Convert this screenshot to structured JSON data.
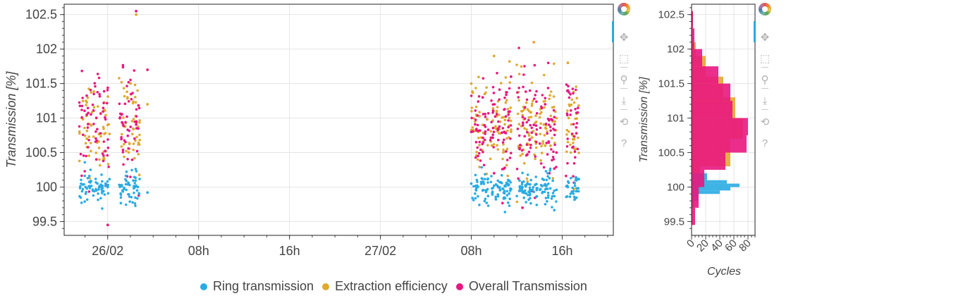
{
  "toolbar": {
    "tools": [
      {
        "name": "bokeh-logo-icon",
        "glyph": ""
      },
      {
        "name": "pan-icon",
        "glyph": "✥"
      },
      {
        "name": "box-zoom-icon",
        "glyph": "⬚"
      },
      {
        "name": "wheel-zoom-icon",
        "glyph": "⚲"
      },
      {
        "name": "save-icon",
        "glyph": "⤓"
      },
      {
        "name": "reset-icon",
        "glyph": "⟲"
      },
      {
        "name": "help-icon",
        "glyph": "?"
      }
    ]
  },
  "colors": {
    "ring": "#29abe2",
    "extraction": "#e0a830",
    "overall": "#e9177f",
    "grid": "#e5e5e5"
  },
  "chart_data": [
    {
      "type": "scatter",
      "ylabel": "Transmission [%]",
      "xlabel": "",
      "ylim": [
        99.3,
        102.65
      ],
      "xlim": [
        "2021-02-25 20:10",
        "2021-02-27 20:30"
      ],
      "yticks": [
        99.5,
        100,
        100.5,
        101,
        101.5,
        102,
        102.5
      ],
      "xticks": [
        {
          "t": "2021-02-26 00:00",
          "label": "26/02"
        },
        {
          "t": "2021-02-26 08:00",
          "label": "08h"
        },
        {
          "t": "2021-02-26 16:00",
          "label": "16h"
        },
        {
          "t": "2021-02-27 00:00",
          "label": "27/02"
        },
        {
          "t": "2021-02-27 08:00",
          "label": "08h"
        },
        {
          "t": "2021-02-27 16:00",
          "label": "16h"
        }
      ],
      "grid": true,
      "legend_position": "bottom",
      "series": [
        {
          "name": "Ring transmission",
          "key": "ring",
          "mean": 99.98,
          "sd": 0.12,
          "x": [
            "2021-02-25 22:10",
            "2021-02-25 23:00",
            "2021-02-26 00:00",
            "2021-02-26 02:30",
            "2021-02-26 03:30",
            "2021-02-27 08:00",
            "2021-02-27 09:00",
            "2021-02-27 10:00",
            "2021-02-27 11:30",
            "2021-02-27 12:30",
            "2021-02-27 13:30",
            "2021-02-27 14:30",
            "2021-02-27 15:30",
            "2021-02-27 16:30"
          ],
          "y": [
            99.98,
            99.95,
            100.0,
            100.02,
            99.92,
            100.05,
            99.95,
            100.02,
            99.97,
            100.0,
            99.93,
            100.04,
            99.96,
            100.0
          ]
        },
        {
          "name": "Extraction efficiency",
          "key": "extraction",
          "mean": 100.9,
          "sd": 0.32,
          "x": [
            "2021-02-25 22:10",
            "2021-02-25 23:00",
            "2021-02-26 00:00",
            "2021-02-26 02:30",
            "2021-02-26 03:30",
            "2021-02-27 08:00",
            "2021-02-27 09:00",
            "2021-02-27 10:00",
            "2021-02-27 11:30",
            "2021-02-27 12:30",
            "2021-02-27 13:30",
            "2021-02-27 14:30",
            "2021-02-27 15:30",
            "2021-02-27 16:30"
          ],
          "y": [
            100.7,
            101.0,
            100.9,
            102.5,
            101.2,
            101.5,
            100.9,
            101.9,
            100.8,
            101.1,
            102.1,
            100.6,
            101.0,
            101.8
          ]
        },
        {
          "name": "Overall Transmission",
          "key": "overall",
          "mean": 100.85,
          "sd": 0.38,
          "x": [
            "2021-02-25 22:10",
            "2021-02-25 23:00",
            "2021-02-26 00:00",
            "2021-02-26 02:30",
            "2021-02-26 03:30",
            "2021-02-27 08:00",
            "2021-02-27 09:00",
            "2021-02-27 10:00",
            "2021-02-27 11:30",
            "2021-02-27 12:30",
            "2021-02-27 13:30",
            "2021-02-27 14:30",
            "2021-02-27 15:30",
            "2021-02-27 16:30"
          ],
          "y": [
            101.05,
            100.4,
            99.45,
            102.55,
            101.7,
            100.8,
            101.3,
            100.2,
            101.6,
            99.7,
            100.9,
            101.2,
            100.5,
            101.4
          ]
        }
      ]
    },
    {
      "type": "bar",
      "orientation": "horizontal",
      "xlabel": "Cycles",
      "ylabel": "Transmission [%]",
      "ylim": [
        99.3,
        102.65
      ],
      "xlim": [
        0,
        90
      ],
      "xticks": [
        0,
        20,
        40,
        60,
        80
      ],
      "yticks": [
        99.5,
        100,
        100.5,
        101,
        101.5,
        102,
        102.5
      ],
      "series": [
        {
          "name": "Ring transmission",
          "key": "ring",
          "bins": [
            [
              99.7,
              99.8,
              2
            ],
            [
              99.8,
              99.9,
              10
            ],
            [
              99.9,
              99.95,
              40
            ],
            [
              99.95,
              100.0,
              55
            ],
            [
              100.0,
              100.05,
              68
            ],
            [
              100.05,
              100.1,
              50
            ],
            [
              100.1,
              100.2,
              22
            ]
          ]
        },
        {
          "name": "Extraction efficiency",
          "key": "extraction",
          "bins": [
            [
              99.7,
              99.9,
              4
            ],
            [
              99.9,
              100.3,
              12
            ],
            [
              100.3,
              100.7,
              55
            ],
            [
              100.7,
              101.0,
              73
            ],
            [
              101.0,
              101.3,
              62
            ],
            [
              101.3,
              101.6,
              45
            ],
            [
              101.6,
              101.9,
              20
            ],
            [
              101.9,
              102.1,
              6
            ],
            [
              102.4,
              102.55,
              2
            ]
          ]
        },
        {
          "name": "Overall Transmission",
          "key": "overall",
          "bins": [
            [
              99.45,
              99.7,
              5
            ],
            [
              99.7,
              100.0,
              10
            ],
            [
              100.0,
              100.25,
              18
            ],
            [
              100.25,
              100.5,
              48
            ],
            [
              100.5,
              100.75,
              78
            ],
            [
              100.75,
              101.0,
              80
            ],
            [
              101.0,
              101.25,
              58
            ],
            [
              101.25,
              101.5,
              55
            ],
            [
              101.5,
              101.75,
              38
            ],
            [
              101.75,
              102.0,
              15
            ],
            [
              102.0,
              102.3,
              4
            ],
            [
              102.3,
              102.55,
              2
            ]
          ]
        }
      ]
    }
  ]
}
